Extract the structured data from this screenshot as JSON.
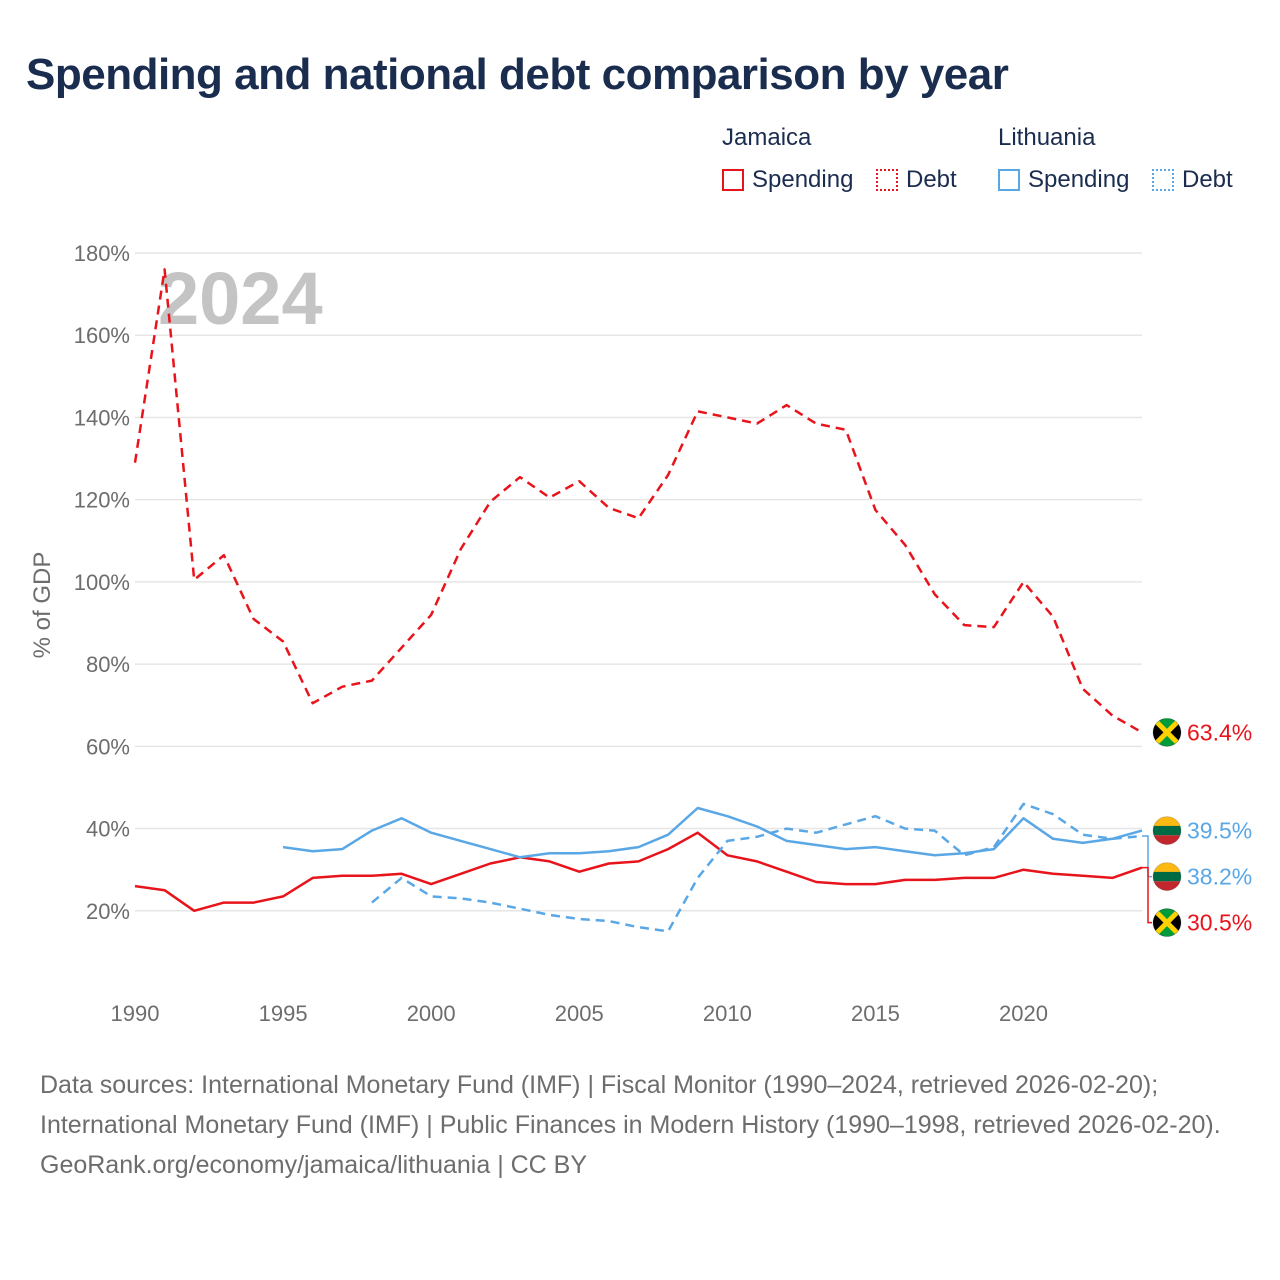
{
  "title": "Spending and national debt comparison by year",
  "legend": {
    "groups": [
      {
        "name": "Jamaica",
        "items": [
          "Spending",
          "Debt"
        ]
      },
      {
        "name": "Lithuania",
        "items": [
          "Spending",
          "Debt"
        ]
      }
    ]
  },
  "colors": {
    "jamaica": "#e8141b",
    "lithuania": "#5aa7e6"
  },
  "footer": {
    "sources": "Data sources: International Monetary Fund (IMF) | Fiscal Monitor (1990–2024, retrieved 2026-02-20); International Monetary Fund (IMF) | Public Finances in Modern History (1990–1998, retrieved 2026-02-20).",
    "credit": "GeoRank.org/economy/jamaica/lithuania | CC BY"
  },
  "chart_data": {
    "type": "line",
    "title": "Spending and national debt comparison by year",
    "year_watermark": "2024",
    "xlabel": "",
    "ylabel": "% of GDP",
    "xlim": [
      1990,
      2024
    ],
    "ylim": [
      0,
      180
    ],
    "x_ticks": [
      1990,
      1995,
      2000,
      2005,
      2010,
      2015,
      2020
    ],
    "x_tick_labels": [
      "1990",
      "1995",
      "2000",
      "2005",
      "2010",
      "2015",
      "2020"
    ],
    "y_ticks": [
      20,
      40,
      60,
      80,
      100,
      120,
      140,
      160,
      180
    ],
    "y_tick_labels": [
      "20%",
      "40%",
      "60%",
      "80%",
      "100%",
      "120%",
      "140%",
      "160%",
      "180%"
    ],
    "grid": true,
    "legend_position": "top-right",
    "series": [
      {
        "name": "Jamaica Debt",
        "country": "Jamaica",
        "color": "#e8141b",
        "dash": true,
        "x": [
          1990,
          1991,
          1992,
          1993,
          1994,
          1995,
          1996,
          1997,
          1998,
          1999,
          2000,
          2001,
          2002,
          2003,
          2004,
          2005,
          2006,
          2007,
          2008,
          2009,
          2010,
          2011,
          2012,
          2013,
          2014,
          2015,
          2016,
          2017,
          2018,
          2019,
          2020,
          2021,
          2022,
          2023,
          2024
        ],
        "values": [
          129,
          176,
          100.5,
          106.5,
          91,
          85.5,
          70.5,
          74.5,
          76,
          84,
          92,
          108,
          119.5,
          125.5,
          120.5,
          124.5,
          118,
          115.5,
          126,
          141.5,
          140,
          138.5,
          143,
          138.5,
          137,
          117.5,
          109,
          97,
          89.5,
          89,
          100,
          91.5,
          74,
          67.5,
          63.4
        ],
        "end_label": "63.4%"
      },
      {
        "name": "Jamaica Spending",
        "country": "Jamaica",
        "color": "#e8141b",
        "dash": false,
        "x": [
          1990,
          1991,
          1992,
          1993,
          1994,
          1995,
          1996,
          1997,
          1998,
          1999,
          2000,
          2001,
          2002,
          2003,
          2004,
          2005,
          2006,
          2007,
          2008,
          2009,
          2010,
          2011,
          2012,
          2013,
          2014,
          2015,
          2016,
          2017,
          2018,
          2019,
          2020,
          2021,
          2022,
          2023,
          2024
        ],
        "values": [
          26,
          25,
          20,
          22,
          22,
          23.5,
          28,
          28.5,
          28.5,
          29,
          26.5,
          29,
          31.5,
          33,
          32,
          29.5,
          31.5,
          32,
          35,
          39,
          33.5,
          32,
          29.5,
          27,
          26.5,
          26.5,
          27.5,
          27.5,
          28,
          28,
          30,
          29,
          28.5,
          28,
          30.5
        ],
        "end_label": "30.5%"
      },
      {
        "name": "Lithuania Spending",
        "country": "Lithuania",
        "color": "#5aa7e6",
        "dash": false,
        "x": [
          1995,
          1996,
          1997,
          1998,
          1999,
          2000,
          2001,
          2002,
          2003,
          2004,
          2005,
          2006,
          2007,
          2008,
          2009,
          2010,
          2011,
          2012,
          2013,
          2014,
          2015,
          2016,
          2017,
          2018,
          2019,
          2020,
          2021,
          2022,
          2023,
          2024
        ],
        "values": [
          35.5,
          34.5,
          35,
          39.5,
          42.5,
          39,
          37,
          35,
          33,
          34,
          34,
          34.5,
          35.5,
          38.5,
          45,
          43,
          40.5,
          37,
          36,
          35,
          35.5,
          34.5,
          33.5,
          34,
          35,
          42.5,
          37.5,
          36.5,
          37.5,
          39.5
        ],
        "end_label": "39.5%"
      },
      {
        "name": "Lithuania Debt",
        "country": "Lithuania",
        "color": "#5aa7e6",
        "dash": true,
        "x": [
          1998,
          1999,
          2000,
          2001,
          2002,
          2003,
          2004,
          2005,
          2006,
          2007,
          2008,
          2009,
          2010,
          2011,
          2012,
          2013,
          2014,
          2015,
          2016,
          2017,
          2018,
          2019,
          2020,
          2021,
          2022,
          2023,
          2024
        ],
        "values": [
          22,
          28,
          23.5,
          23,
          22,
          20.5,
          19,
          18,
          17.5,
          16,
          15,
          28,
          37,
          38,
          40,
          39,
          41,
          43,
          40,
          39.5,
          33.5,
          35.5,
          46,
          43.5,
          38.5,
          37.5,
          38.2
        ],
        "end_label": "38.2%"
      }
    ]
  }
}
